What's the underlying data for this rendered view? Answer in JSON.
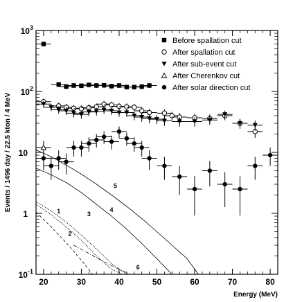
{
  "chart_data": {
    "type": "scatter",
    "title": "",
    "xlabel": "Energy (MeV)",
    "ylabel": "Events / 1496 day / 22.5 kton / 4 MeV",
    "xlim": [
      18,
      82
    ],
    "ylim": [
      0.1,
      1000
    ],
    "yscale": "log",
    "bin_width_mev": 4,
    "x_ticks": [
      20,
      30,
      40,
      50,
      60,
      70,
      80
    ],
    "y_ticks": [
      {
        "value": 0.1,
        "base": "10",
        "exp": "-1"
      },
      {
        "value": 1,
        "base": "1",
        "exp": ""
      },
      {
        "value": 10,
        "base": "10",
        "exp": ""
      },
      {
        "value": 100,
        "base": "10",
        "exp": "2"
      },
      {
        "value": 1000,
        "base": "10",
        "exp": "3"
      }
    ],
    "legend_position": "top-right",
    "series": [
      {
        "name": "Before spallation cut",
        "marker": "filled-square",
        "points": [
          {
            "x": 20,
            "y": 600
          },
          {
            "x": 24,
            "y": 130
          },
          {
            "x": 26,
            "y": 120
          },
          {
            "x": 28,
            "y": 125
          },
          {
            "x": 30,
            "y": 124
          },
          {
            "x": 32,
            "y": 128
          },
          {
            "x": 34,
            "y": 125
          },
          {
            "x": 36,
            "y": 126
          },
          {
            "x": 38,
            "y": 122
          },
          {
            "x": 40,
            "y": 125
          },
          {
            "x": 42,
            "y": 118
          },
          {
            "x": 44,
            "y": 118
          },
          {
            "x": 46,
            "y": 120
          },
          {
            "x": 48,
            "y": 125
          }
        ]
      },
      {
        "name": "After spallation cut",
        "marker": "open-circle",
        "points": [
          {
            "x": 20,
            "y": 68
          },
          {
            "x": 24,
            "y": 58
          },
          {
            "x": 26,
            "y": 55
          },
          {
            "x": 28,
            "y": 53
          },
          {
            "x": 30,
            "y": 52
          },
          {
            "x": 32,
            "y": 54
          },
          {
            "x": 34,
            "y": 56
          },
          {
            "x": 36,
            "y": 62
          },
          {
            "x": 38,
            "y": 60
          },
          {
            "x": 40,
            "y": 57
          },
          {
            "x": 42,
            "y": 56
          },
          {
            "x": 44,
            "y": 55
          },
          {
            "x": 46,
            "y": 48
          },
          {
            "x": 48,
            "y": 45
          },
          {
            "x": 52,
            "y": 44
          },
          {
            "x": 54,
            "y": 40
          },
          {
            "x": 56,
            "y": 38
          },
          {
            "x": 60,
            "y": 37
          },
          {
            "x": 64,
            "y": 36
          },
          {
            "x": 68,
            "y": 40
          },
          {
            "x": 72,
            "y": 30
          },
          {
            "x": 76,
            "y": 22
          }
        ]
      },
      {
        "name": "After sub-event cut",
        "marker": "filled-triangle-down",
        "points": [
          {
            "x": 20,
            "y": 62
          },
          {
            "x": 22,
            "y": 55
          },
          {
            "x": 24,
            "y": 50
          },
          {
            "x": 26,
            "y": 48
          },
          {
            "x": 28,
            "y": 44
          },
          {
            "x": 30,
            "y": 42
          },
          {
            "x": 32,
            "y": 46
          },
          {
            "x": 34,
            "y": 47
          },
          {
            "x": 36,
            "y": 50
          },
          {
            "x": 38,
            "y": 48
          },
          {
            "x": 40,
            "y": 45
          },
          {
            "x": 42,
            "y": 45
          },
          {
            "x": 44,
            "y": 40
          },
          {
            "x": 46,
            "y": 38
          },
          {
            "x": 48,
            "y": 36
          },
          {
            "x": 50,
            "y": 35
          },
          {
            "x": 52,
            "y": 33
          },
          {
            "x": 56,
            "y": 32
          },
          {
            "x": 60,
            "y": 32
          },
          {
            "x": 64,
            "y": 34
          },
          {
            "x": 68,
            "y": 42
          },
          {
            "x": 72,
            "y": 30
          },
          {
            "x": 76,
            "y": 28
          }
        ]
      },
      {
        "name": "After Cherenkov cut",
        "marker": "open-triangle-up",
        "points": [
          {
            "x": 20,
            "y": 12
          }
        ]
      },
      {
        "name": "After solar direction cut",
        "marker": "filled-circle",
        "points": [
          {
            "x": 20,
            "y": 8
          },
          {
            "x": 22,
            "y": 6
          },
          {
            "x": 24,
            "y": 8
          },
          {
            "x": 26,
            "y": 7
          },
          {
            "x": 28,
            "y": 12
          },
          {
            "x": 30,
            "y": 12
          },
          {
            "x": 32,
            "y": 14
          },
          {
            "x": 34,
            "y": 16
          },
          {
            "x": 36,
            "y": 18
          },
          {
            "x": 38,
            "y": 15
          },
          {
            "x": 40,
            "y": 22
          },
          {
            "x": 42,
            "y": 17
          },
          {
            "x": 44,
            "y": 14
          },
          {
            "x": 46,
            "y": 12
          },
          {
            "x": 48,
            "y": 8
          },
          {
            "x": 52,
            "y": 6
          },
          {
            "x": 56,
            "y": 4
          },
          {
            "x": 60,
            "y": 2.5
          },
          {
            "x": 64,
            "y": 5
          },
          {
            "x": 68,
            "y": 3
          },
          {
            "x": 72,
            "y": 2.5
          },
          {
            "x": 76,
            "y": 6
          },
          {
            "x": 80,
            "y": 9
          }
        ]
      }
    ],
    "curves": [
      {
        "label": "1",
        "style": "dotted",
        "points": [
          [
            18,
            1.4
          ],
          [
            22,
            0.95
          ],
          [
            26,
            0.6
          ],
          [
            30,
            0.36
          ],
          [
            34,
            0.2
          ],
          [
            38,
            0.12
          ],
          [
            41,
            0.1
          ]
        ]
      },
      {
        "label": "2",
        "style": "dashed",
        "points": [
          [
            18,
            1.05
          ],
          [
            22,
            0.6
          ],
          [
            26,
            0.33
          ],
          [
            30,
            0.17
          ],
          [
            33,
            0.1
          ]
        ]
      },
      {
        "label": "3",
        "style": "dotted",
        "points": [
          [
            18,
            1.55
          ],
          [
            22,
            1.1
          ],
          [
            26,
            0.72
          ],
          [
            30,
            0.44
          ],
          [
            34,
            0.26
          ],
          [
            38,
            0.15
          ],
          [
            42,
            0.1
          ]
        ]
      },
      {
        "label": "4",
        "style": "solid",
        "points": [
          [
            18,
            5.5
          ],
          [
            22,
            4.3
          ],
          [
            26,
            3.2
          ],
          [
            30,
            2.2
          ],
          [
            34,
            1.4
          ],
          [
            38,
            0.9
          ],
          [
            42,
            0.55
          ],
          [
            46,
            0.32
          ],
          [
            50,
            0.18
          ],
          [
            54,
            0.1
          ]
        ]
      },
      {
        "label": "5",
        "style": "solid",
        "points": [
          [
            18,
            11
          ],
          [
            22,
            8.5
          ],
          [
            26,
            6.2
          ],
          [
            30,
            4.4
          ],
          [
            34,
            3.0
          ],
          [
            38,
            2.0
          ],
          [
            42,
            1.3
          ],
          [
            46,
            0.82
          ],
          [
            50,
            0.5
          ],
          [
            54,
            0.3
          ],
          [
            58,
            0.18
          ],
          [
            61,
            0.1
          ]
        ]
      },
      {
        "label": "6",
        "style": "dash-dot",
        "points": [
          [
            28,
            0.3
          ],
          [
            32,
            0.22
          ],
          [
            36,
            0.16
          ],
          [
            40,
            0.12
          ],
          [
            43,
            0.1
          ]
        ]
      }
    ],
    "curve_label_positions": {
      "1": [
        24,
        1.0
      ],
      "2": [
        27,
        0.43
      ],
      "3": [
        32,
        0.9
      ],
      "4": [
        38,
        1.05
      ],
      "5": [
        39,
        2.6
      ],
      "6": [
        45,
        0.12
      ]
    }
  }
}
